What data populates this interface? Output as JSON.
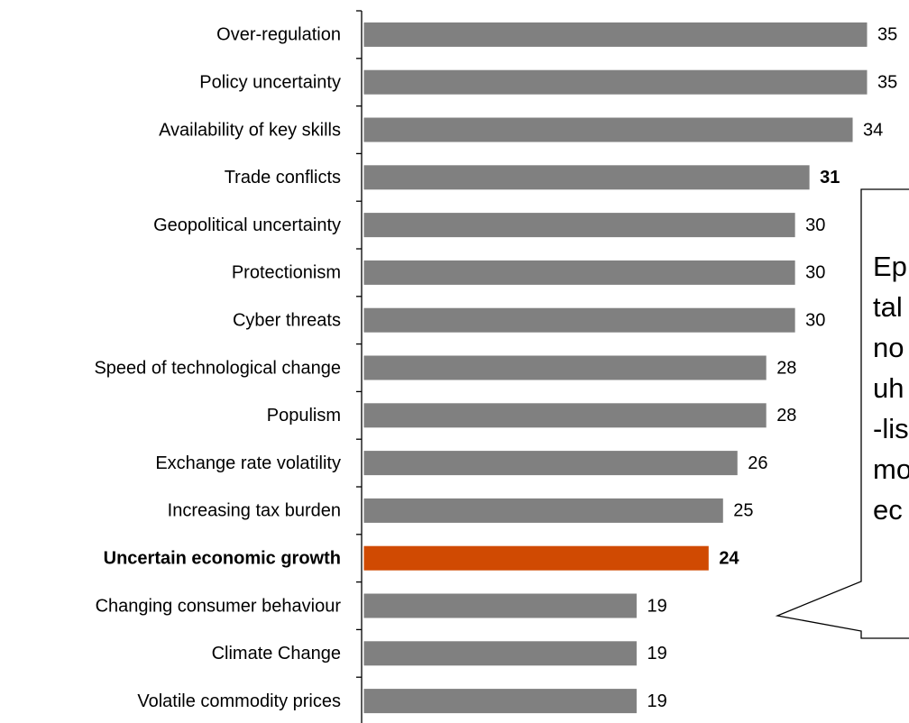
{
  "chart_data": {
    "type": "bar",
    "orientation": "horizontal",
    "categories": [
      "Over-regulation",
      "Policy uncertainty",
      "Availability of key skills",
      "Trade conflicts",
      "Geopolitical uncertainty",
      "Protectionism",
      "Cyber threats",
      "Speed of technological change",
      "Populism",
      "Exchange rate volatility",
      "Increasing tax burden",
      "Uncertain economic growth",
      "Changing consumer behaviour",
      "Climate Change",
      "Volatile commodity prices"
    ],
    "values": [
      35,
      35,
      34,
      31,
      30,
      30,
      30,
      28,
      28,
      26,
      25,
      24,
      19,
      19,
      19
    ],
    "color": "#808080",
    "highlight_color": "#d04a02",
    "highlight_index": 11,
    "bold_value_indices": [
      3,
      11
    ],
    "xlim": [
      0,
      35
    ],
    "annotation": [
      "Ep",
      "tal",
      "no",
      "uh",
      "-lis",
      "mo",
      "ec"
    ]
  }
}
